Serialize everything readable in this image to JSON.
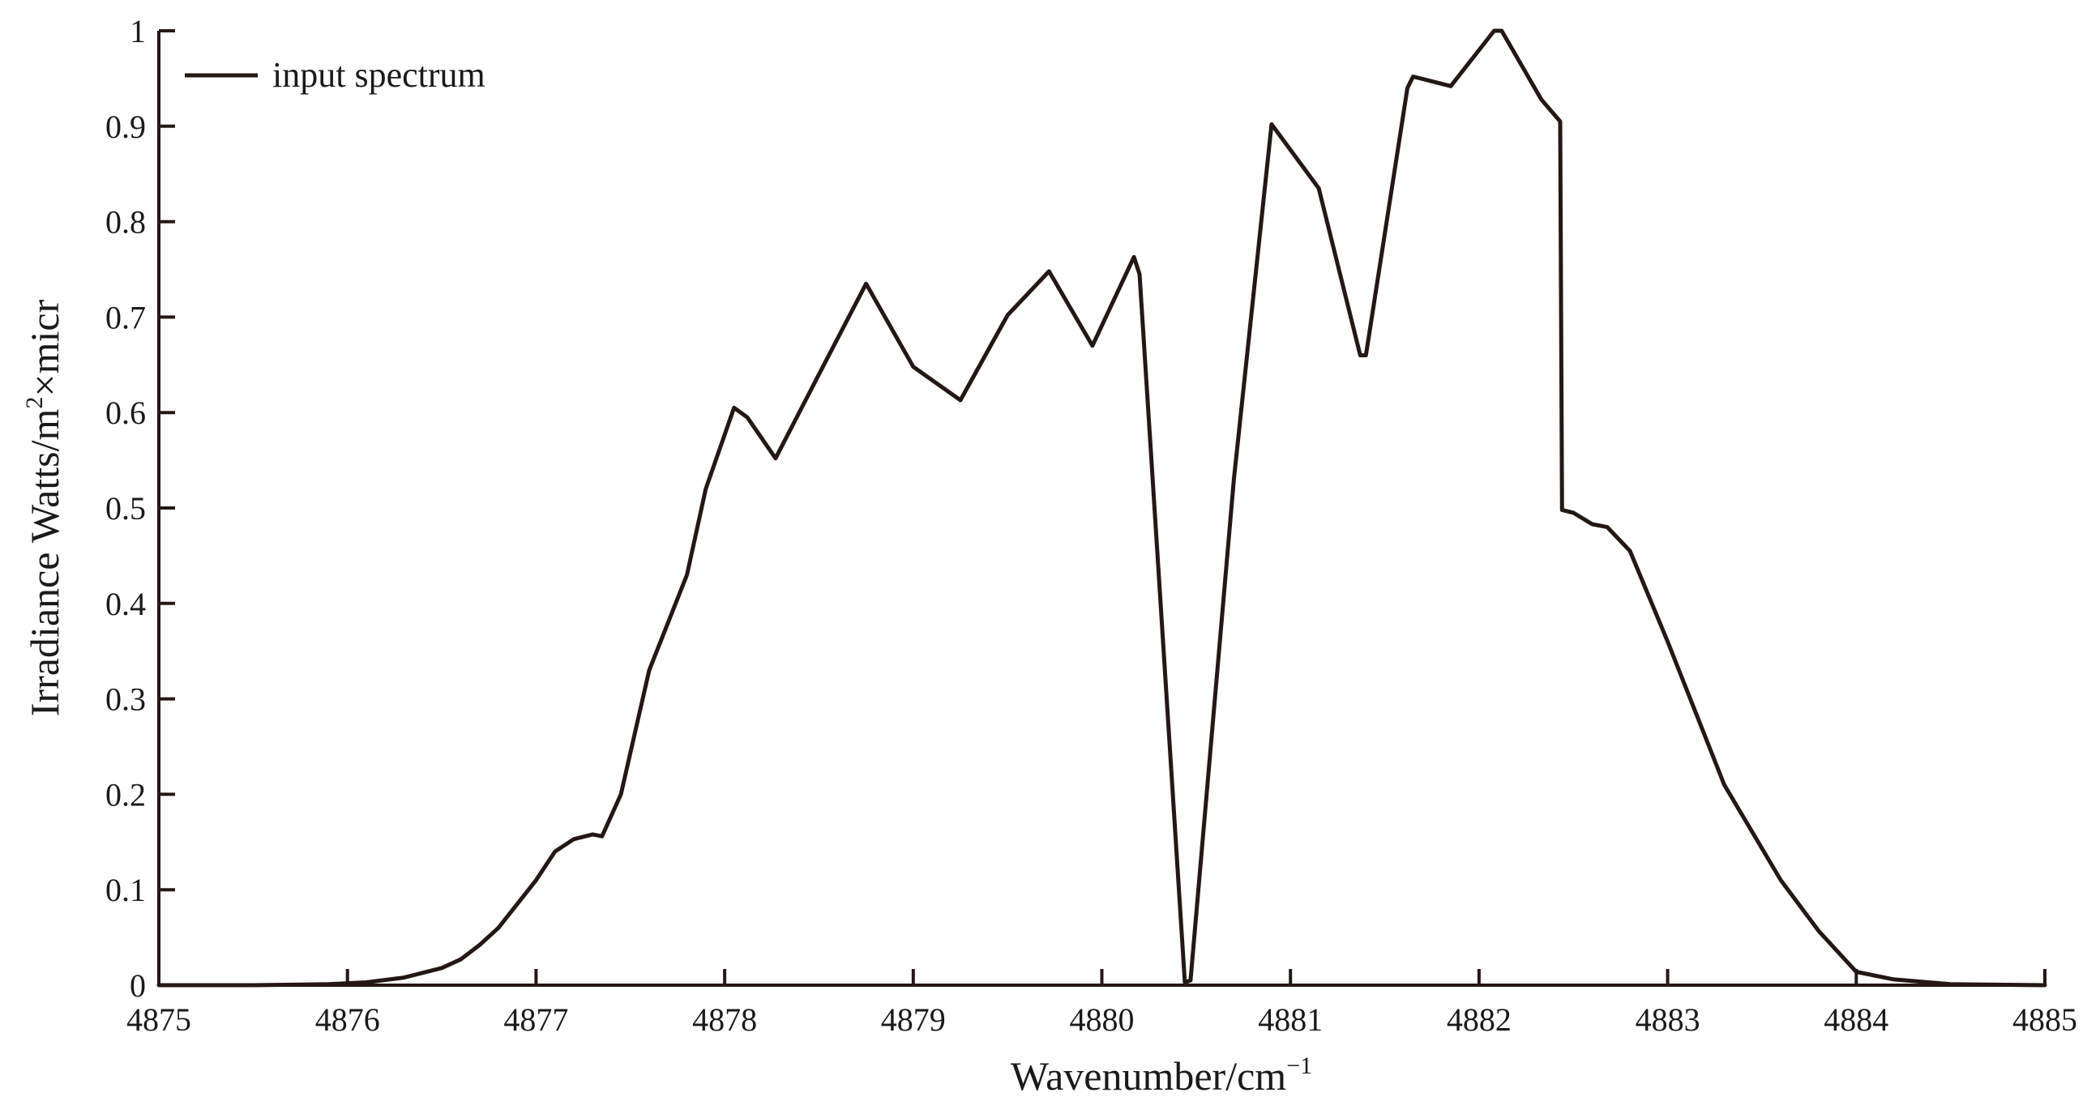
{
  "chart_data": {
    "type": "line",
    "xlabel": "Wavenumber/cm",
    "xlabel_sup": "−1",
    "ylabel": "Irradiance Watts/m",
    "ylabel_sup": "2",
    "ylabel_tail": "×micr",
    "xlim": [
      4875,
      4885
    ],
    "ylim": [
      0,
      1
    ],
    "x_ticks": [
      "4875",
      "4876",
      "4877",
      "4878",
      "4879",
      "4880",
      "4881",
      "4882",
      "4883",
      "4884",
      "4885"
    ],
    "y_ticks": [
      "0",
      "0.1",
      "0.2",
      "0.3",
      "0.4",
      "0.5",
      "0.6",
      "0.7",
      "0.8",
      "0.9",
      "1"
    ],
    "legend_position": "top-left",
    "line_color": "#231815",
    "series": [
      {
        "name": "input spectrum",
        "x": [
          4875.0,
          4875.5,
          4875.9,
          4876.1,
          4876.3,
          4876.5,
          4876.6,
          4876.7,
          4876.8,
          4876.9,
          4877.0,
          4877.1,
          4877.2,
          4877.3,
          4877.35,
          4877.45,
          4877.6,
          4877.8,
          4877.9,
          4878.05,
          4878.12,
          4878.27,
          4878.5,
          4878.75,
          4879.0,
          4879.25,
          4879.5,
          4879.72,
          4879.95,
          4880.17,
          4880.2,
          4880.44,
          4880.47,
          4880.7,
          4880.9,
          4881.15,
          4881.37,
          4881.4,
          4881.62,
          4881.65,
          4881.85,
          4882.08,
          4882.12,
          4882.33,
          4882.43,
          4882.44,
          4882.5,
          4882.6,
          4882.68,
          4882.8,
          4883.0,
          4883.3,
          4883.6,
          4883.8,
          4884.0,
          4884.2,
          4884.5,
          4885.0
        ],
        "y": [
          0,
          0,
          0.001,
          0.003,
          0.008,
          0.018,
          0.027,
          0.042,
          0.06,
          0.085,
          0.11,
          0.14,
          0.153,
          0.158,
          0.156,
          0.2,
          0.33,
          0.43,
          0.52,
          0.605,
          0.595,
          0.552,
          0.64,
          0.735,
          0.648,
          0.613,
          0.702,
          0.748,
          0.67,
          0.763,
          0.745,
          0.003,
          0.005,
          0.53,
          0.902,
          0.835,
          0.66,
          0.66,
          0.94,
          0.952,
          0.942,
          1.0,
          1.0,
          0.928,
          0.905,
          0.498,
          0.495,
          0.483,
          0.48,
          0.455,
          0.36,
          0.21,
          0.11,
          0.057,
          0.014,
          0.006,
          0.001,
          0
        ]
      }
    ]
  }
}
